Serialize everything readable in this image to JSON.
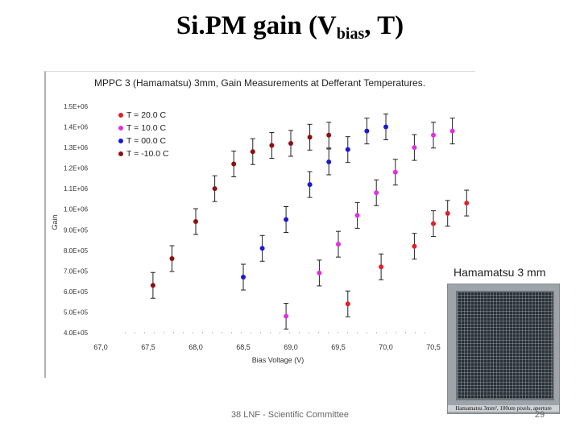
{
  "slide": {
    "title_main": "Si.PM gain (V",
    "title_sub": "bias",
    "title_end": ", T)",
    "photo_caption": "Hamamatsu 3 mm",
    "photo_label": "Hamamatsu 3mm², 100um pixels, aperture",
    "footer": "38 LNF - Scientific Committee",
    "page_number": "29"
  },
  "chart_data": {
    "type": "scatter",
    "title": "MPPC 3 (Hamamatsu) 3mm, Gain Measurements at Defferant Temperatures.",
    "xlabel": "Bias Voltage (V)",
    "ylabel": "Gain",
    "xlim": [
      67.0,
      70.8
    ],
    "ylim": [
      400000,
      1500000
    ],
    "x_ticks": [
      "67,0",
      "67,5",
      "68,0",
      "68,5",
      "69,0",
      "69,5",
      "70,0",
      "70,5"
    ],
    "y_ticks": [
      "4.0E+05",
      "5.0E+05",
      "6.0E+05",
      "7.0E+05",
      "8.0E+05",
      "9.0E+05",
      "1.0E+06",
      "1.1E+06",
      "1.2E+06",
      "1.3E+06",
      "1.4E+06",
      "1.5E+06"
    ],
    "grid": false,
    "legend_position": "top-left",
    "series": [
      {
        "name": "T =   20.0 C",
        "color": "#e0202a",
        "points": [
          [
            69.6,
            540000
          ],
          [
            69.95,
            720000
          ],
          [
            70.3,
            820000
          ],
          [
            70.5,
            930000
          ],
          [
            70.65,
            980000
          ],
          [
            70.85,
            1030000
          ]
        ]
      },
      {
        "name": "T =   10.0 C",
        "color": "#e030e0",
        "points": [
          [
            68.95,
            480000
          ],
          [
            69.3,
            690000
          ],
          [
            69.5,
            830000
          ],
          [
            69.7,
            970000
          ],
          [
            69.9,
            1080000
          ],
          [
            70.1,
            1180000
          ],
          [
            70.3,
            1300000
          ],
          [
            70.5,
            1360000
          ],
          [
            70.7,
            1380000
          ]
        ]
      },
      {
        "name": "T =   00.0 C",
        "color": "#1a1ad0",
        "points": [
          [
            68.5,
            670000
          ],
          [
            68.7,
            810000
          ],
          [
            68.95,
            950000
          ],
          [
            69.2,
            1120000
          ],
          [
            69.4,
            1230000
          ],
          [
            69.6,
            1290000
          ],
          [
            69.8,
            1380000
          ],
          [
            70.0,
            1400000
          ]
        ]
      },
      {
        "name": "T = -10.0 C",
        "color": "#8b1010",
        "points": [
          [
            67.55,
            630000
          ],
          [
            67.75,
            760000
          ],
          [
            68.0,
            940000
          ],
          [
            68.2,
            1100000
          ],
          [
            68.4,
            1220000
          ],
          [
            68.6,
            1280000
          ],
          [
            68.8,
            1310000
          ],
          [
            69.0,
            1320000
          ],
          [
            69.2,
            1350000
          ],
          [
            69.4,
            1360000
          ]
        ]
      }
    ]
  }
}
